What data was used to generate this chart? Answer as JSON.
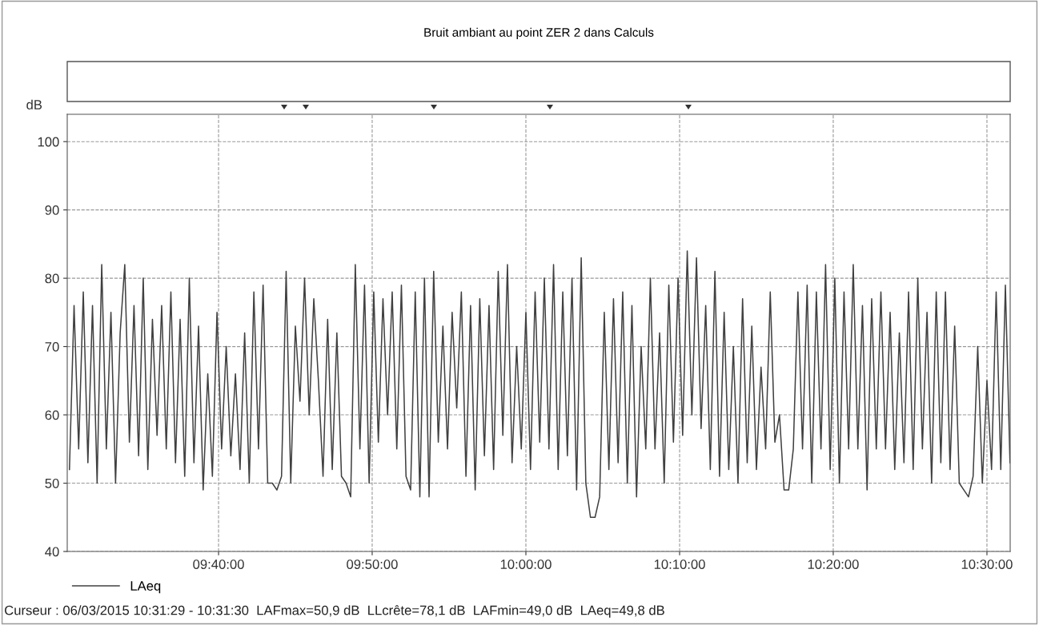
{
  "chart_data": {
    "type": "line",
    "title": "Bruit ambiant au point ZER 2 dans Calculs",
    "ylabel": "dB",
    "annotations": [
      "Curseur : 06/03/2015 10:31:29 - 10:31:30  LAFmax=50,9 dB  LLcrête=78,1 dB  LAFmin=49,0 dB  LAeq=49,8 dB"
    ],
    "xlim": [
      9.5026,
      10.5252
    ],
    "ylim": [
      40,
      104
    ],
    "xticks": [
      {
        "value": 9.6667,
        "label": "09:40:00"
      },
      {
        "value": 9.8333,
        "label": "09:50:00"
      },
      {
        "value": 10,
        "label": "10:00:00"
      },
      {
        "value": 10.1667,
        "label": "10:10:00"
      },
      {
        "value": 10.3333,
        "label": "10:20:00"
      },
      {
        "value": 10.5,
        "label": "10:30:00"
      }
    ],
    "yticks": [
      40,
      50,
      60,
      70,
      80,
      90,
      100
    ],
    "grid": true,
    "legend": "bottom left",
    "marker": "none",
    "line_style": "solid",
    "series": [
      {
        "name": "LAeq",
        "color": "#404040",
        "x": [
          9.505,
          9.51,
          9.515,
          9.52,
          9.525,
          9.53,
          9.535,
          9.54,
          9.545,
          9.55,
          9.555,
          9.56,
          9.565,
          9.57,
          9.575,
          9.58,
          9.585,
          9.59,
          9.595,
          9.6,
          9.605,
          9.61,
          9.615,
          9.62,
          9.625,
          9.63,
          9.635,
          9.64,
          9.645,
          9.65,
          9.655,
          9.66,
          9.665,
          9.67,
          9.675,
          9.68,
          9.685,
          9.69,
          9.695,
          9.7,
          9.705,
          9.71,
          9.715,
          9.72,
          9.725,
          9.73,
          9.735,
          9.74,
          9.745,
          9.75,
          9.755,
          9.76,
          9.765,
          9.77,
          9.775,
          9.78,
          9.785,
          9.79,
          9.795,
          9.8,
          9.805,
          9.81,
          9.815,
          9.82,
          9.825,
          9.83,
          9.835,
          9.84,
          9.845,
          9.85,
          9.855,
          9.86,
          9.865,
          9.87,
          9.875,
          9.88,
          9.885,
          9.89,
          9.895,
          9.9,
          9.905,
          9.91,
          9.915,
          9.92,
          9.925,
          9.93,
          9.935,
          9.94,
          9.945,
          9.95,
          9.955,
          9.96,
          9.965,
          9.97,
          9.975,
          9.98,
          9.985,
          9.99,
          9.995,
          10.0,
          10.005,
          10.01,
          10.015,
          10.02,
          10.025,
          10.03,
          10.035,
          10.04,
          10.045,
          10.05,
          10.055,
          10.06,
          10.065,
          10.07,
          10.075,
          10.08,
          10.085,
          10.09,
          10.095,
          10.1,
          10.105,
          10.11,
          10.115,
          10.12,
          10.125,
          10.13,
          10.135,
          10.14,
          10.145,
          10.15,
          10.155,
          10.16,
          10.165,
          10.17,
          10.175,
          10.18,
          10.185,
          10.19,
          10.195,
          10.2,
          10.205,
          10.21,
          10.215,
          10.22,
          10.225,
          10.23,
          10.235,
          10.24,
          10.245,
          10.25,
          10.255,
          10.26,
          10.265,
          10.27,
          10.275,
          10.28,
          10.285,
          10.29,
          10.295,
          10.3,
          10.305,
          10.31,
          10.315,
          10.32,
          10.325,
          10.33,
          10.335,
          10.34,
          10.345,
          10.35,
          10.355,
          10.36,
          10.365,
          10.37,
          10.375,
          10.38,
          10.385,
          10.39,
          10.395,
          10.4,
          10.405,
          10.41,
          10.415,
          10.42,
          10.425,
          10.43,
          10.435,
          10.44,
          10.445,
          10.45,
          10.455,
          10.46,
          10.465,
          10.47,
          10.475,
          10.48,
          10.485,
          10.49,
          10.495,
          10.5,
          10.505,
          10.51,
          10.515,
          10.52,
          10.525
        ],
        "values": [
          52,
          76,
          55,
          78,
          53,
          76,
          50,
          82,
          55,
          75,
          50,
          72,
          82,
          56,
          76,
          54,
          80,
          52,
          74,
          57,
          76,
          55,
          78,
          53,
          74,
          51,
          80,
          53,
          73,
          49,
          66,
          51,
          75,
          55,
          70,
          54,
          66,
          52,
          72,
          50,
          78,
          55,
          79,
          50,
          50,
          49,
          51,
          81,
          50,
          73,
          62,
          80,
          60,
          77,
          65,
          51,
          74,
          52,
          72,
          51,
          50,
          48,
          82,
          55,
          79,
          50,
          78,
          56,
          77,
          60,
          78,
          55,
          79,
          51,
          49,
          78,
          48,
          80,
          48,
          81,
          56,
          73,
          55,
          75,
          61,
          78,
          51,
          76,
          49,
          77,
          54,
          76,
          52,
          81,
          57,
          82,
          53,
          70,
          55,
          75,
          52,
          78,
          56,
          80,
          55,
          82,
          52,
          78,
          54,
          80,
          49,
          83,
          50,
          45,
          45,
          48,
          75,
          52,
          77,
          53,
          78,
          50,
          76,
          48,
          70,
          55,
          80,
          55,
          72,
          50,
          79,
          56,
          80,
          57,
          84,
          60,
          83,
          58,
          76,
          52,
          81,
          51,
          75,
          52,
          70,
          50,
          77,
          53,
          73,
          52,
          67,
          55,
          78,
          56,
          60,
          49,
          49,
          55,
          78,
          55,
          79,
          50,
          78,
          55,
          82,
          52,
          80,
          50,
          78,
          55,
          82,
          55,
          76,
          49,
          77,
          55,
          78,
          55,
          75,
          52,
          72,
          53,
          78,
          52,
          80,
          55,
          75,
          50,
          78,
          53,
          78,
          52,
          73,
          50,
          49,
          48,
          51,
          70,
          50,
          65,
          52,
          78,
          52,
          79,
          53
        ]
      }
    ]
  }
}
